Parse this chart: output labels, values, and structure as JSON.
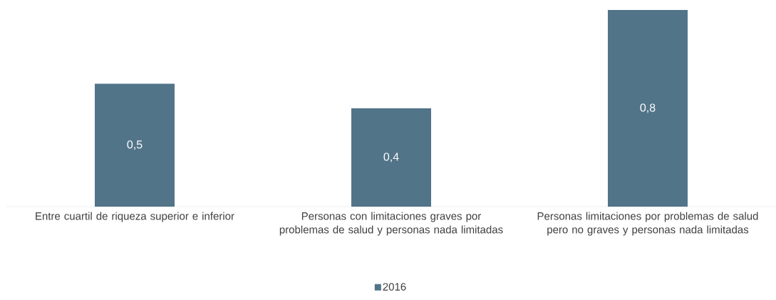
{
  "chart_data": {
    "type": "bar",
    "categories": [
      "Entre cuartil de riqueza superior e inferior",
      "Personas con limitaciones graves por problemas de salud y personas nada limitadas",
      "Personas limitaciones por problemas de salud pero no graves y personas nada limitadas"
    ],
    "series": [
      {
        "name": "2016",
        "color": "#527489",
        "values": [
          0.5,
          0.4,
          0.8
        ],
        "value_labels": [
          "0,5",
          "0,4",
          "0,8"
        ]
      }
    ],
    "legend": "bottom"
  }
}
